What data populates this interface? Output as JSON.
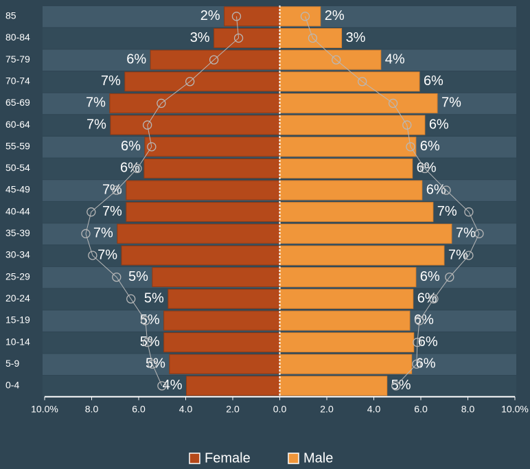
{
  "chart_data": {
    "type": "pyramid",
    "categories": [
      "85",
      "80-84",
      "75-79",
      "70-74",
      "65-69",
      "60-64",
      "55-59",
      "50-54",
      "45-49",
      "40-44",
      "35-39",
      "30-34",
      "25-29",
      "20-24",
      "15-19",
      "10-14",
      "5-9",
      "0-4"
    ],
    "series": [
      {
        "name": "Female",
        "color": "#b5491a",
        "side": "left",
        "values": [
          2.36,
          2.8,
          5.5,
          6.59,
          7.23,
          7.2,
          5.74,
          5.77,
          6.53,
          6.53,
          6.91,
          6.73,
          5.42,
          4.75,
          4.93,
          4.93,
          4.69,
          3.97
        ],
        "value_labels": [
          "2%",
          "3%",
          "6%",
          "7%",
          "7%",
          "7%",
          "6%",
          "6%",
          "7%",
          "7%",
          "7%",
          "7%",
          "5%",
          "5%",
          "5%",
          "5%",
          "5%",
          "4%"
        ],
        "overlay": [
          1.84,
          1.75,
          2.8,
          3.82,
          5.04,
          5.63,
          5.45,
          6.06,
          6.94,
          8.02,
          8.25,
          7.96,
          6.94,
          6.33,
          5.71,
          5.63,
          5.42,
          5.01
        ]
      },
      {
        "name": "Male",
        "color": "#f0963a",
        "side": "right",
        "values": [
          1.73,
          2.63,
          4.3,
          5.94,
          6.7,
          6.17,
          5.79,
          5.64,
          6.05,
          6.52,
          7.31,
          6.99,
          5.79,
          5.67,
          5.53,
          5.7,
          5.61,
          4.56
        ],
        "value_labels": [
          "2%",
          "3%",
          "4%",
          "6%",
          "7%",
          "6%",
          "6%",
          "6%",
          "6%",
          "7%",
          "7%",
          "7%",
          "6%",
          "6%",
          "6%",
          "6%",
          "6%",
          "5%"
        ],
        "overlay": [
          1.08,
          1.4,
          2.4,
          3.51,
          4.82,
          5.41,
          5.56,
          6.17,
          7.08,
          8.04,
          8.48,
          8.04,
          7.22,
          6.55,
          5.94,
          5.85,
          5.82,
          4.94
        ]
      }
    ],
    "overlay_color": "#b8b8b8",
    "xlim": [
      -10,
      10
    ],
    "xticks": [
      {
        "value": -10,
        "label": "10.0%"
      },
      {
        "value": -8,
        "label": "8.0"
      },
      {
        "value": -6,
        "label": "6.0"
      },
      {
        "value": -4,
        "label": "4.0"
      },
      {
        "value": -2,
        "label": "2.0"
      },
      {
        "value": 0,
        "label": "0.0"
      },
      {
        "value": 2,
        "label": "2.0"
      },
      {
        "value": 4,
        "label": "4.0"
      },
      {
        "value": 6,
        "label": "6.0"
      },
      {
        "value": 8,
        "label": "8.0"
      },
      {
        "value": 10,
        "label": "10.0%"
      }
    ]
  }
}
